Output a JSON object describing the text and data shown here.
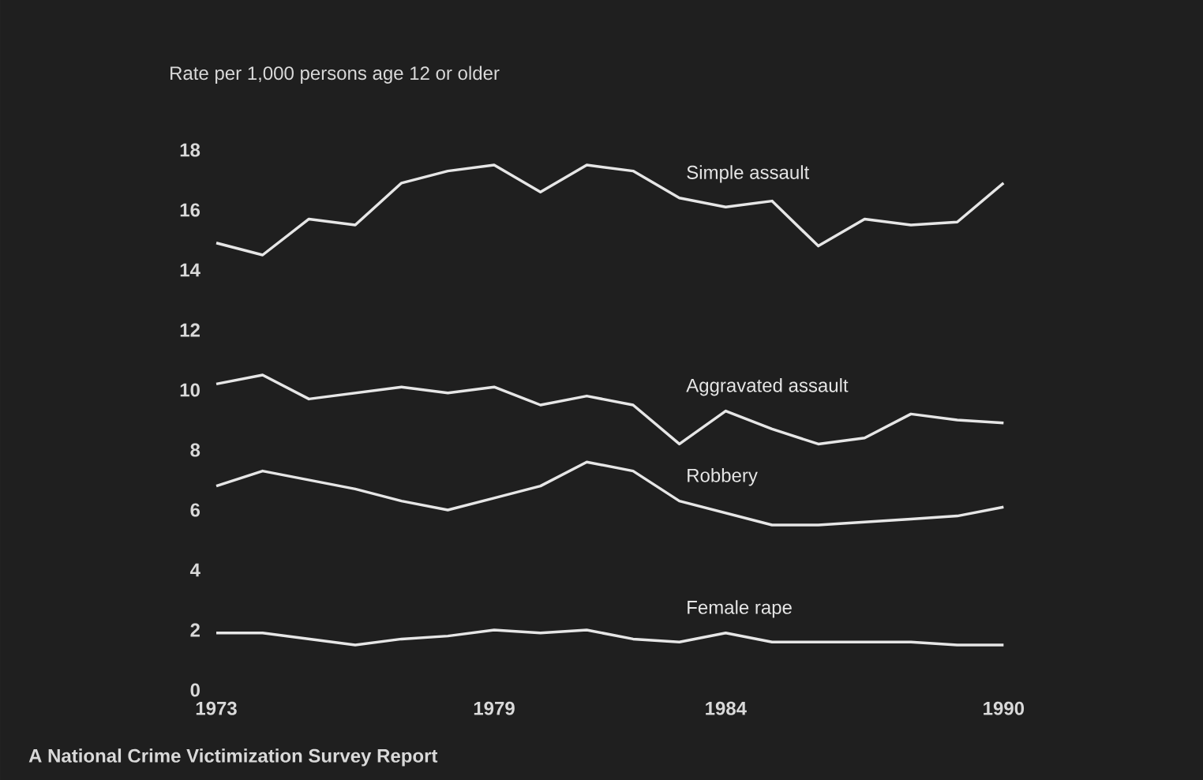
{
  "chart_data": {
    "type": "line",
    "ylabel": "Rate per 1,000 persons age 12 or older",
    "x": [
      1973,
      1974,
      1975,
      1976,
      1977,
      1978,
      1979,
      1980,
      1981,
      1982,
      1983,
      1984,
      1985,
      1986,
      1987,
      1988,
      1989,
      1990
    ],
    "xlim": [
      1973,
      1990
    ],
    "xticks": [
      1973,
      1979,
      1984,
      1990
    ],
    "ylim": [
      0,
      18
    ],
    "yticks": [
      0,
      2,
      4,
      6,
      8,
      10,
      12,
      14,
      16,
      18
    ],
    "series": [
      {
        "name": "Simple assault",
        "color": "#e6e6e6",
        "values": [
          14.9,
          14.5,
          15.7,
          15.5,
          16.9,
          17.3,
          17.5,
          16.6,
          17.5,
          17.3,
          16.4,
          16.1,
          16.3,
          14.8,
          15.7,
          15.5,
          15.6,
          16.9
        ]
      },
      {
        "name": "Aggravated assault",
        "color": "#e6e6e6",
        "values": [
          10.2,
          10.5,
          9.7,
          9.9,
          10.1,
          9.9,
          10.1,
          9.5,
          9.8,
          9.5,
          8.2,
          9.3,
          8.7,
          8.2,
          8.4,
          9.2,
          9.0,
          8.9
        ]
      },
      {
        "name": "Robbery",
        "color": "#e6e6e6",
        "values": [
          6.8,
          7.3,
          7.0,
          6.7,
          6.3,
          6.0,
          6.4,
          6.8,
          7.6,
          7.3,
          6.3,
          5.9,
          5.5,
          5.5,
          5.6,
          5.7,
          5.8,
          6.1
        ]
      },
      {
        "name": "Female rape",
        "color": "#e6e6e6",
        "values": [
          1.9,
          1.9,
          1.7,
          1.5,
          1.7,
          1.8,
          2.0,
          1.9,
          2.0,
          1.7,
          1.6,
          1.9,
          1.6,
          1.6,
          1.6,
          1.6,
          1.5,
          1.5
        ]
      }
    ],
    "annotations": [
      "A National Crime Victimization Survey Report"
    ]
  }
}
